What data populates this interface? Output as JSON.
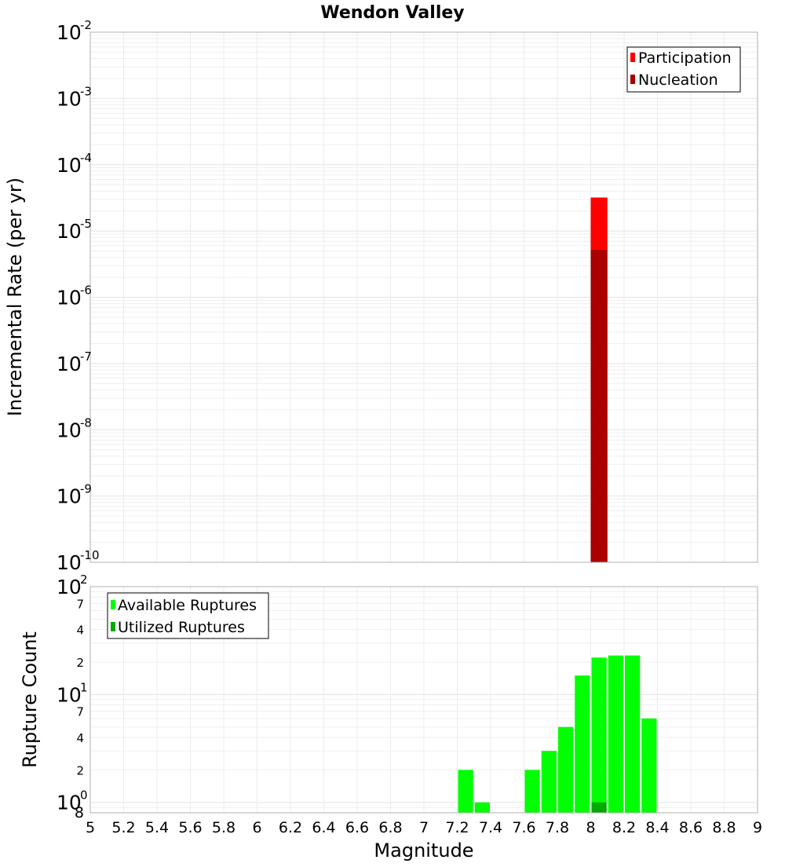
{
  "chart_data": [
    {
      "type": "bar",
      "title": "Wendon Valley",
      "ylabel": "Incremental Rate (per yr)",
      "xlabel": "",
      "yscale": "log",
      "ylim": [
        1e-10,
        0.01
      ],
      "xlim": [
        5,
        9
      ],
      "y_tick_labels": [
        {
          "base": "10",
          "exp": "-2"
        },
        {
          "base": "10",
          "exp": "-3"
        },
        {
          "base": "10",
          "exp": "-4"
        },
        {
          "base": "10",
          "exp": "-5"
        },
        {
          "base": "10",
          "exp": "-6"
        },
        {
          "base": "10",
          "exp": "-7"
        },
        {
          "base": "10",
          "exp": "-8"
        },
        {
          "base": "10",
          "exp": "-9"
        },
        {
          "base": "10",
          "exp": "-10"
        }
      ],
      "grid": true,
      "legend_position": "top-right",
      "series": [
        {
          "name": "Participation",
          "color": "#ff0000",
          "x": [
            8.05
          ],
          "values": [
            3.2e-05
          ]
        },
        {
          "name": "Nucleation",
          "color": "#aa0000",
          "x": [
            8.05
          ],
          "values": [
            5.2e-06
          ]
        }
      ]
    },
    {
      "type": "bar",
      "title": "",
      "ylabel": "Rupture Count",
      "xlabel": "Magnitude",
      "yscale": "log",
      "ylim": [
        0.8,
        100
      ],
      "xlim": [
        5,
        9
      ],
      "y_tick_labels": [
        {
          "base": "10",
          "exp": "2"
        },
        {
          "base": "",
          "exp": "",
          "minor": "7"
        },
        {
          "base": "",
          "exp": "",
          "minor": "4"
        },
        {
          "base": "",
          "exp": "",
          "minor": "2"
        },
        {
          "base": "10",
          "exp": "1"
        },
        {
          "base": "",
          "exp": "",
          "minor": "7"
        },
        {
          "base": "",
          "exp": "",
          "minor": "4"
        },
        {
          "base": "",
          "exp": "",
          "minor": "2"
        },
        {
          "base": "10",
          "exp": "0"
        },
        {
          "base": "",
          "exp": "",
          "minor": "8"
        }
      ],
      "x_tick_labels": [
        "5",
        "5.2",
        "5.4",
        "5.6",
        "5.8",
        "6",
        "6.2",
        "6.4",
        "6.6",
        "6.8",
        "7",
        "7.2",
        "7.4",
        "7.6",
        "7.8",
        "8",
        "8.2",
        "8.4",
        "8.6",
        "8.8",
        "9"
      ],
      "grid": true,
      "legend_position": "top-left",
      "series": [
        {
          "name": "Available Ruptures",
          "color": "#00ff00",
          "x": [
            7.25,
            7.35,
            7.65,
            7.75,
            7.85,
            7.95,
            8.05,
            8.15,
            8.25,
            8.35
          ],
          "values": [
            2,
            1,
            2,
            3,
            5,
            15,
            22,
            23,
            23,
            6
          ]
        },
        {
          "name": "Utilized Ruptures",
          "color": "#00aa00",
          "x": [
            8.05
          ],
          "values": [
            1
          ]
        }
      ]
    }
  ]
}
